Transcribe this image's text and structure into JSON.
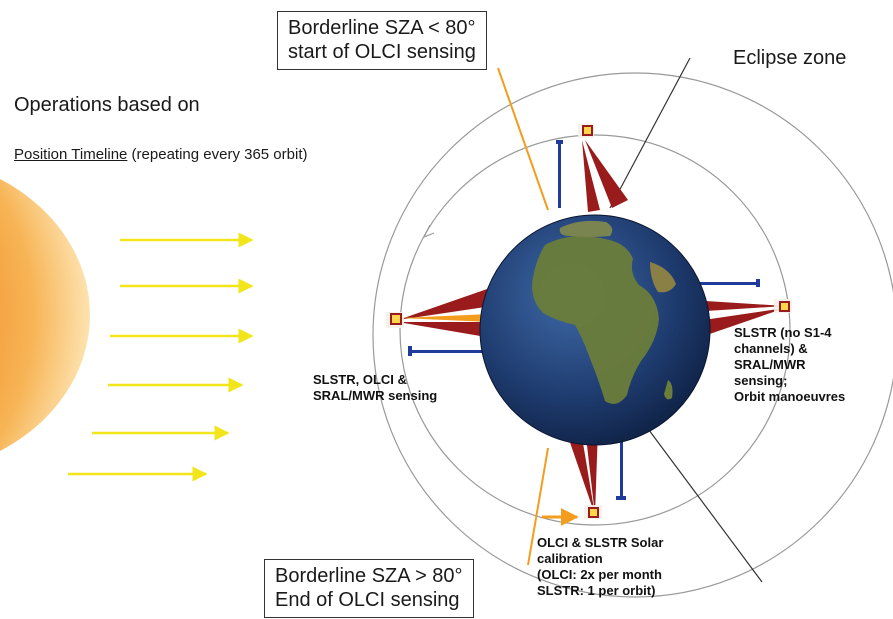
{
  "title": "Operations based on",
  "subtitle": {
    "underlined": "Position Timeline",
    "rest": " (repeating every 365 orbit)"
  },
  "eclipse_label": "Eclipse zone",
  "box_top": {
    "line1": "Borderline SZA < 80°",
    "line2": "start of OLCI sensing"
  },
  "box_bottom": {
    "line1": "Borderline SZA > 80°",
    "line2": "End of OLCI sensing"
  },
  "label_left": {
    "line1": "SLSTR, OLCI &",
    "line2": "SRAL/MWR sensing"
  },
  "label_right": {
    "line1": "SLSTR (no S1-4",
    "line2": "channels) &",
    "line3": "SRAL/MWR",
    "line4": "sensing;",
    "line5": "Orbit manoeuvres"
  },
  "label_bottom": {
    "line1": "OLCI & SLSTR Solar",
    "line2": "calibration",
    "line3": "(OLCI: 2x per month",
    "line4": "SLSTR: 1 per orbit)"
  },
  "colors": {
    "sun_core": "#f07a1c",
    "sun_edge": "#fbd08a",
    "sun_rays": "#f2e51a",
    "olci_line": "#f39c1e",
    "swath_red": "#9a1b1b",
    "swath_blue": "#1f3c9c",
    "orbit_line": "#999999",
    "earth_ocean": "#1d3a6b",
    "earth_land": "#6b7d3a"
  },
  "icons": [
    "sun",
    "earth-globe",
    "satellite"
  ]
}
